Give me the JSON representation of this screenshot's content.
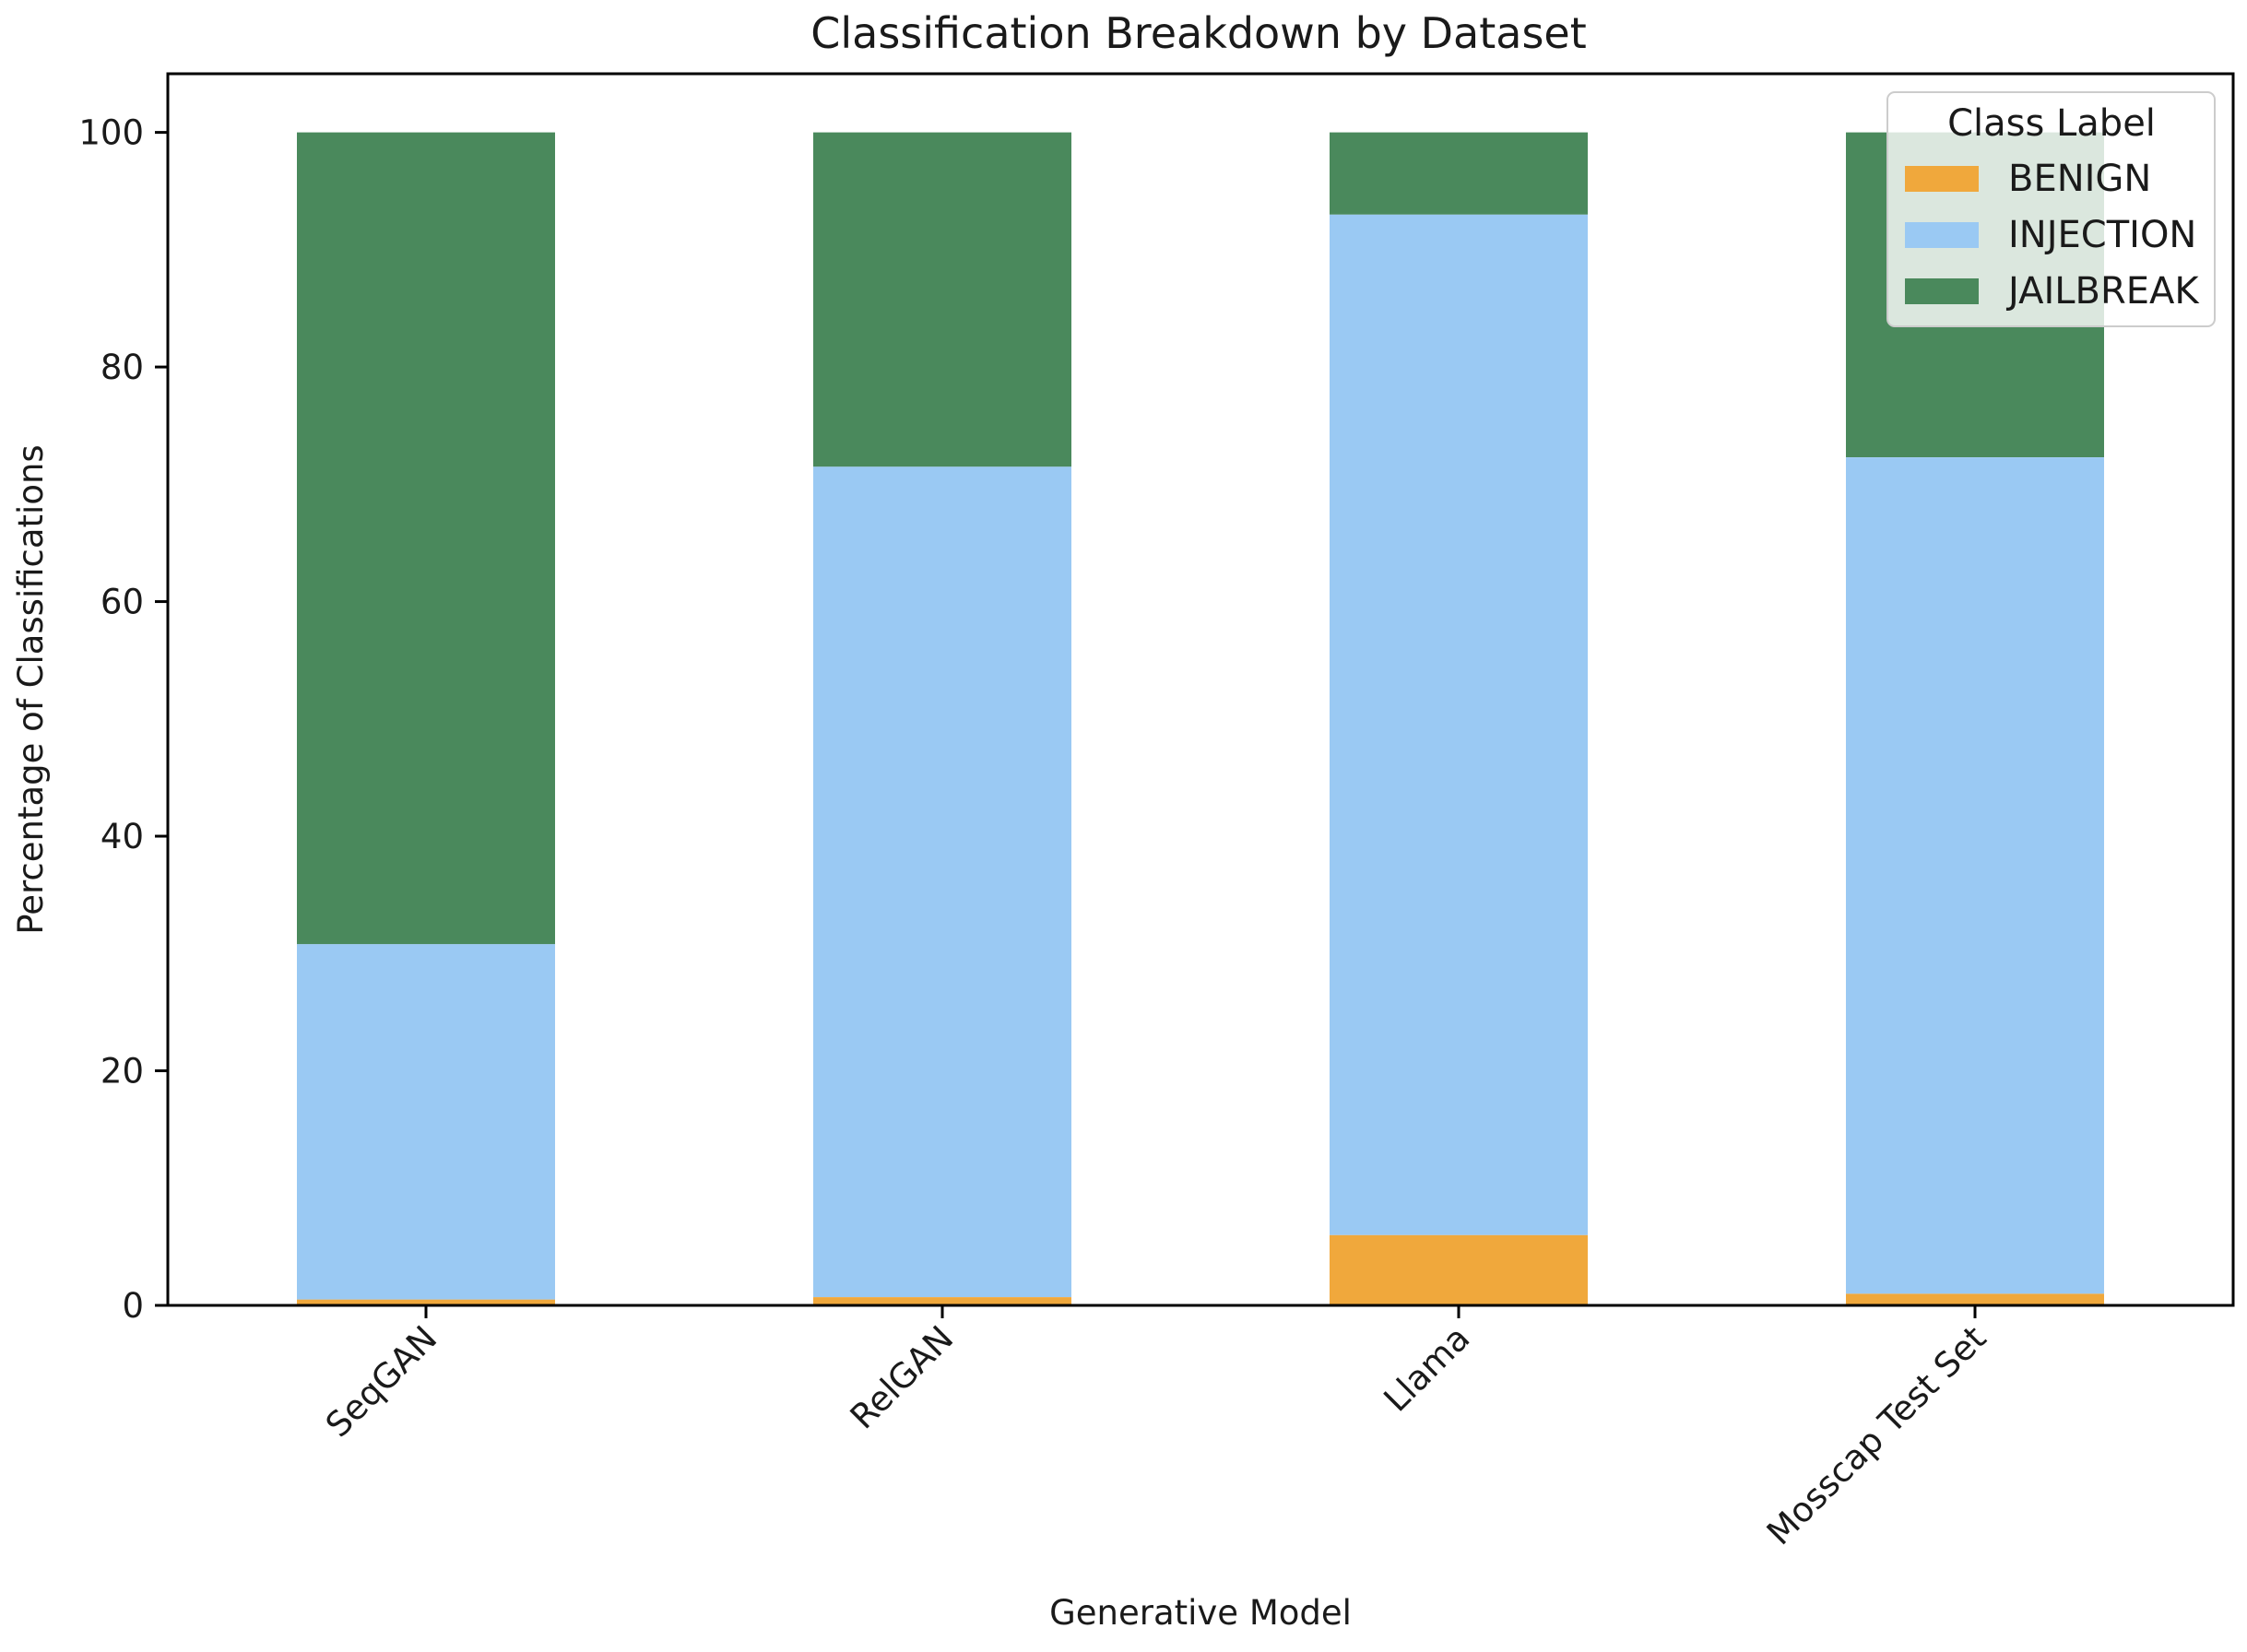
{
  "chart_data": {
    "type": "bar",
    "stacked": true,
    "title": "Classification Breakdown by Dataset",
    "xlabel": "Generative Model",
    "ylabel": "Percentage of Classifications",
    "categories": [
      "SeqGAN",
      "RelGAN",
      "Llama",
      "Mosscap Test Set"
    ],
    "ylim": [
      0,
      105
    ],
    "yticks": [
      0,
      20,
      40,
      60,
      80,
      100
    ],
    "grid": false,
    "legend": {
      "title": "Class Label",
      "placement": "top-right"
    },
    "series": [
      {
        "name": "BENIGN",
        "color": "#f0a83c",
        "values": [
          0.5,
          0.7,
          6.0,
          1.0
        ]
      },
      {
        "name": "INJECTION",
        "color": "#9ac9f3",
        "values": [
          30.3,
          70.8,
          87.0,
          71.3
        ]
      },
      {
        "name": "JAILBREAK",
        "color": "#4a895c",
        "values": [
          69.2,
          28.5,
          7.0,
          27.7
        ]
      }
    ]
  }
}
